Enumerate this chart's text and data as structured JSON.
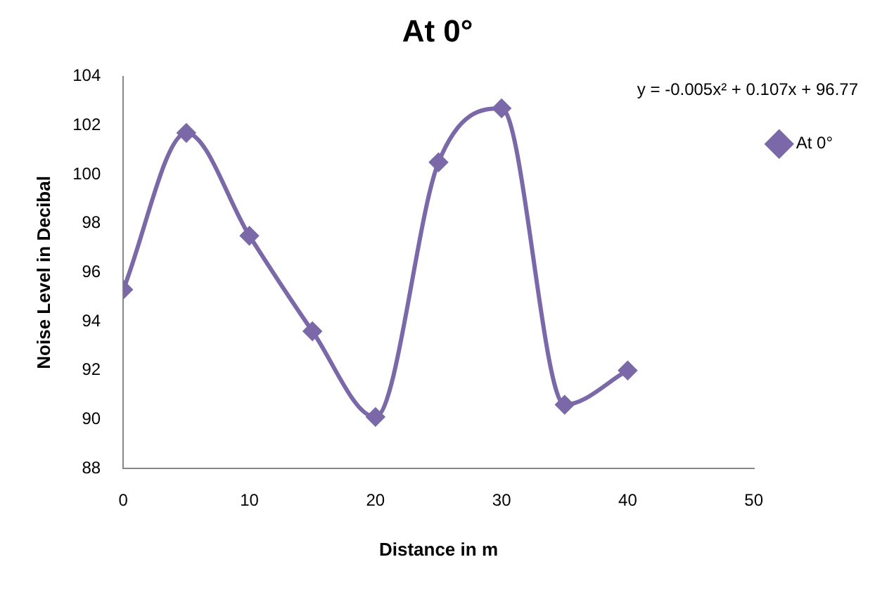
{
  "chart_data": {
    "type": "line",
    "title": "At 0°",
    "xlabel": "Distance in m",
    "ylabel": "Noise Level in Decibal",
    "x": [
      0,
      5,
      10,
      15,
      20,
      25,
      30,
      35,
      40
    ],
    "series": [
      {
        "name": "At 0°",
        "color": "#7b68a8",
        "values": [
          95.3,
          101.7,
          97.5,
          93.6,
          90.1,
          100.5,
          102.7,
          90.6,
          92.0
        ]
      }
    ],
    "xlim": [
      0,
      50
    ],
    "xticks": [
      0,
      10,
      20,
      30,
      40,
      50
    ],
    "ylim": [
      88,
      104
    ],
    "yticks": [
      88,
      90,
      92,
      94,
      96,
      98,
      100,
      102,
      104
    ],
    "grid": false,
    "legend": "right",
    "marker": "diamond",
    "line_style": "solid",
    "annotations": [
      "y = -0.005x² + 0.107x + 96.77"
    ]
  }
}
